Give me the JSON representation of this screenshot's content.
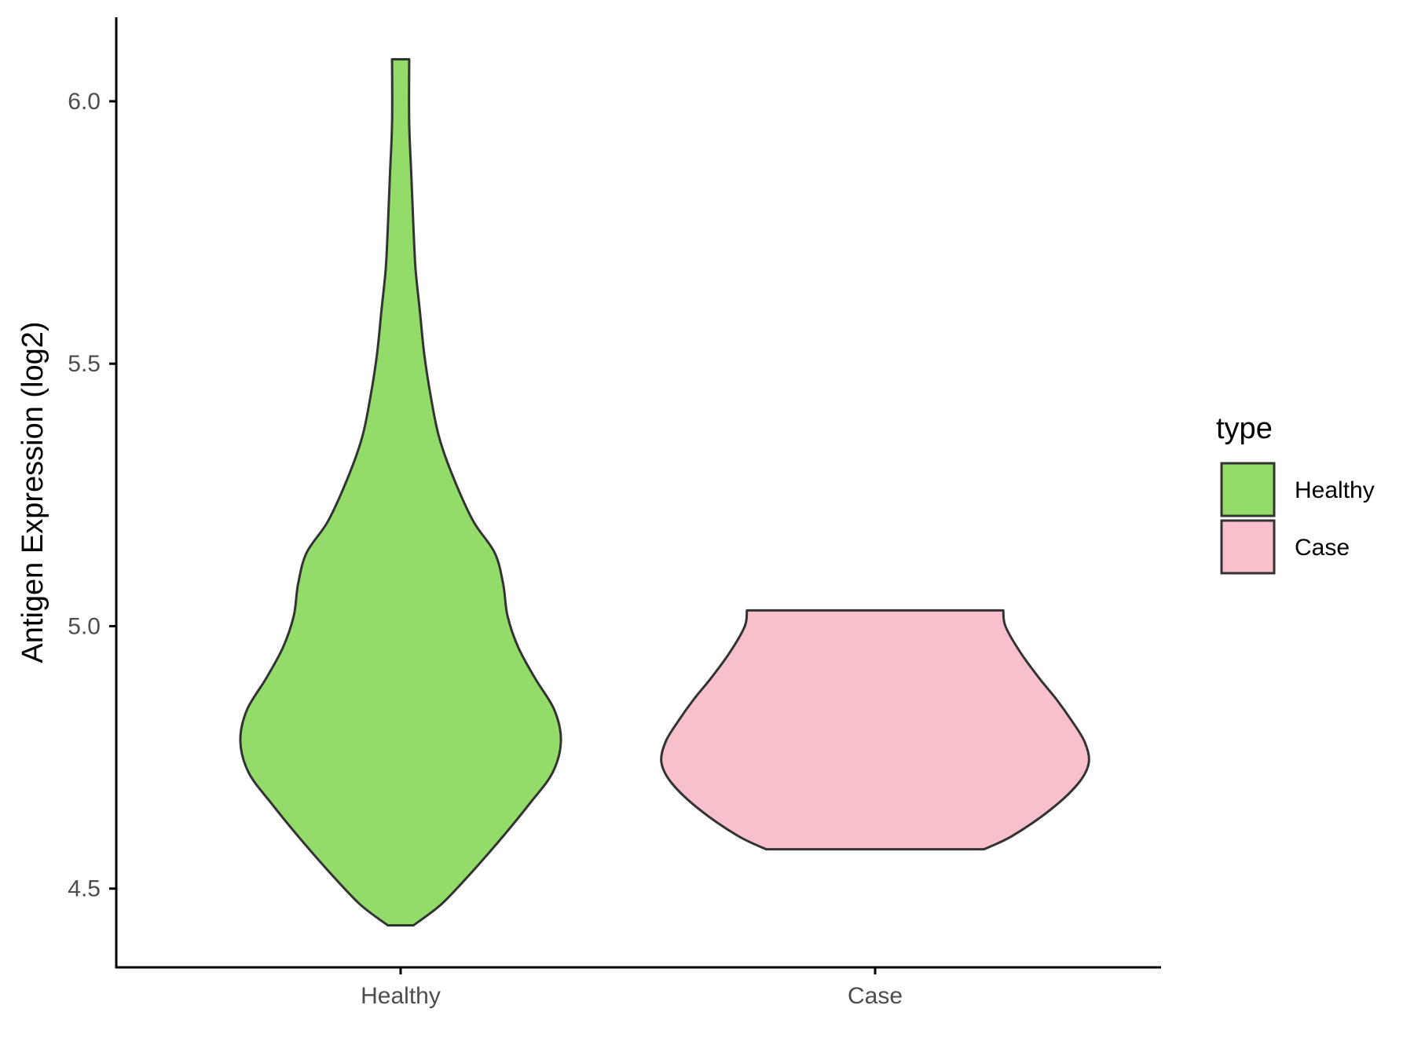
{
  "chart_data": {
    "type": "violin",
    "ylabel": "Antigen Expression (log2)",
    "xlabel": "",
    "categories": [
      "Healthy",
      "Case"
    ],
    "yticks": [
      "4.5",
      "5.0",
      "5.5",
      "6.0"
    ],
    "ytick_values": [
      4.5,
      5.0,
      5.5,
      6.0
    ],
    "ylim": [
      4.35,
      6.16
    ],
    "grid": false,
    "legend": {
      "title": "type",
      "position": "right",
      "items": [
        {
          "label": "Healthy",
          "color": "#93DC6A"
        },
        {
          "label": "Case",
          "color": "#F8C0CB"
        }
      ]
    },
    "series": [
      {
        "category": "Healthy",
        "color": "#93DC6A",
        "min": 4.43,
        "max": 6.08,
        "density": [
          [
            4.43,
            0.06
          ],
          [
            4.47,
            0.19
          ],
          [
            4.53,
            0.33
          ],
          [
            4.6,
            0.48
          ],
          [
            4.66,
            0.6
          ],
          [
            4.72,
            0.71
          ],
          [
            4.78,
            0.75
          ],
          [
            4.84,
            0.72
          ],
          [
            4.9,
            0.63
          ],
          [
            4.96,
            0.55
          ],
          [
            5.02,
            0.5
          ],
          [
            5.08,
            0.48
          ],
          [
            5.14,
            0.44
          ],
          [
            5.2,
            0.34
          ],
          [
            5.28,
            0.25
          ],
          [
            5.36,
            0.18
          ],
          [
            5.44,
            0.14
          ],
          [
            5.52,
            0.11
          ],
          [
            5.6,
            0.09
          ],
          [
            5.68,
            0.07
          ],
          [
            5.76,
            0.06
          ],
          [
            5.86,
            0.05
          ],
          [
            5.96,
            0.04
          ],
          [
            6.08,
            0.04
          ]
        ]
      },
      {
        "category": "Case",
        "color": "#F8C0CB",
        "min": 4.575,
        "max": 5.03,
        "density": [
          [
            4.575,
            0.51
          ],
          [
            4.6,
            0.64
          ],
          [
            4.65,
            0.82
          ],
          [
            4.7,
            0.95
          ],
          [
            4.74,
            1.0
          ],
          [
            4.78,
            0.98
          ],
          [
            4.82,
            0.92
          ],
          [
            4.86,
            0.85
          ],
          [
            4.9,
            0.77
          ],
          [
            4.95,
            0.68
          ],
          [
            5.0,
            0.61
          ],
          [
            5.03,
            0.6
          ]
        ]
      }
    ]
  }
}
